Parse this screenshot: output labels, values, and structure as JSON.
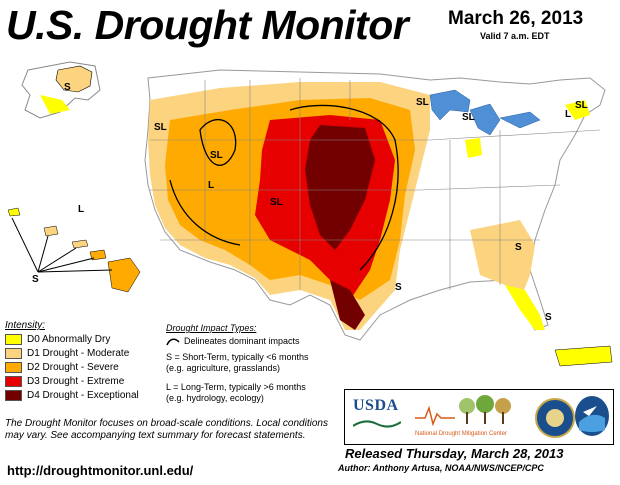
{
  "header": {
    "title": "U.S. Drought Monitor",
    "date": "March 26, 2013",
    "valid": "Valid 7 a.m. EDT"
  },
  "legend": {
    "title": "Intensity:",
    "items": [
      {
        "label": "D0 Abnormally Dry",
        "color": "#ffff00"
      },
      {
        "label": "D1 Drought - Moderate",
        "color": "#fcd37f"
      },
      {
        "label": "D2 Drought - Severe",
        "color": "#ffaa00"
      },
      {
        "label": "D3 Drought - Extreme",
        "color": "#e60000"
      },
      {
        "label": "D4 Drought - Exceptional",
        "color": "#730000"
      }
    ]
  },
  "impact": {
    "title": "Drought Impact Types:",
    "line_label": "Delineates dominant impacts",
    "short_term": "S = Short-Term, typically <6 months",
    "short_term_eg": "(e.g. agriculture, grasslands)",
    "long_term": "L = Long-Term, typically >6 months",
    "long_term_eg": "(e.g. hydrology, ecology)"
  },
  "note": "The Drought Monitor focuses on broad-scale conditions. Local conditions may vary. See accompanying text summary for forecast statements.",
  "url": "http://droughtmonitor.unl.edu/",
  "logos": {
    "usda": "USDA",
    "ndmc_line1": "National",
    "ndmc_line2": "Drought Mitigation Center",
    "icons": [
      "usda-logo",
      "ndmc-logo",
      "doc-seal",
      "noaa-logo"
    ]
  },
  "footer": {
    "released": "Released Thursday, March 28, 2013",
    "author": "Author: Anthony Artusa, NOAA/NWS/NCEP/CPC"
  },
  "map_labels": {
    "s": "S",
    "l": "L",
    "sl": "SL"
  },
  "colors": {
    "water": "#4f8fd6",
    "land": "#ffffff",
    "border": "#999999"
  }
}
